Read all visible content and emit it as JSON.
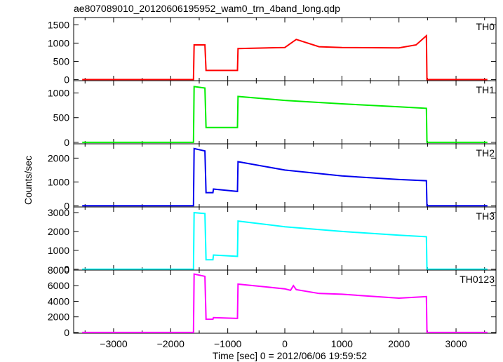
{
  "chart_data": {
    "type": "line",
    "title": "ae807089010_20120606195952_wam0_trn_4band_long.qdp",
    "xlabel": "Time [sec] 0 = 2012/06/06 19:59:52",
    "ylabel": "Counts/sec",
    "xlim": [
      -3700,
      3700
    ],
    "x_ticks": [
      -3000,
      -2000,
      -1000,
      0,
      1000,
      2000,
      3000
    ],
    "x_tick_labels": [
      "−3000",
      "−2000",
      "−1000",
      "0",
      "1000",
      "2000",
      "3000"
    ],
    "series": [
      {
        "name": "TH0",
        "color": "#ff0000",
        "ylim": [
          -30,
          1700
        ],
        "y_ticks": [
          0,
          500,
          1000,
          1500
        ],
        "y_tick_labels": [
          "0",
          "500",
          "1000",
          "1500"
        ],
        "x": [
          -3550,
          -1600,
          -1590,
          -1400,
          -1380,
          -830,
          -820,
          0,
          200,
          600,
          1000,
          2000,
          2300,
          2480,
          2490,
          3550
        ],
        "y": [
          0,
          0,
          950,
          950,
          250,
          250,
          850,
          880,
          1100,
          900,
          880,
          870,
          950,
          1200,
          0,
          0
        ]
      },
      {
        "name": "TH1",
        "color": "#00ee00",
        "ylim": [
          -30,
          1250
        ],
        "y_ticks": [
          0,
          500,
          1000
        ],
        "y_tick_labels": [
          "0",
          "500",
          "1000"
        ],
        "x": [
          -3550,
          -1600,
          -1590,
          -1400,
          -1380,
          -830,
          -820,
          0,
          1000,
          2000,
          2480,
          2490,
          3550
        ],
        "y": [
          0,
          0,
          1130,
          1100,
          300,
          300,
          930,
          850,
          780,
          720,
          690,
          0,
          0
        ]
      },
      {
        "name": "TH2",
        "color": "#0000ee",
        "ylim": [
          -50,
          2600
        ],
        "y_ticks": [
          0,
          1000,
          2000
        ],
        "y_tick_labels": [
          "0",
          "1000",
          "2000"
        ],
        "x": [
          -3550,
          -1600,
          -1590,
          -1400,
          -1380,
          -1260,
          -1250,
          -830,
          -820,
          0,
          1000,
          2000,
          2480,
          2490,
          3550
        ],
        "y": [
          0,
          0,
          2400,
          2300,
          550,
          550,
          700,
          600,
          1850,
          1500,
          1250,
          1100,
          1050,
          0,
          0
        ]
      },
      {
        "name": "TH3",
        "color": "#00ffff",
        "ylim": [
          -50,
          3300
        ],
        "y_ticks": [
          0,
          1000,
          2000,
          3000
        ],
        "y_tick_labels": [
          "0",
          "1000",
          "2000",
          "3000"
        ],
        "x": [
          -3550,
          -1600,
          -1590,
          -1400,
          -1380,
          -1260,
          -1250,
          -830,
          -820,
          0,
          1000,
          2000,
          2480,
          2490,
          3550
        ],
        "y": [
          0,
          0,
          3000,
          2950,
          500,
          500,
          750,
          680,
          2550,
          2250,
          2000,
          1800,
          1720,
          0,
          0
        ]
      },
      {
        "name": "TH0123",
        "color": "#ff00ff",
        "ylim": [
          -100,
          8000
        ],
        "y_ticks": [
          0,
          2000,
          4000,
          6000,
          8000
        ],
        "y_tick_labels": [
          "0",
          "2000",
          "4000",
          "6000",
          "8000"
        ],
        "x": [
          -3550,
          -1600,
          -1590,
          -1400,
          -1380,
          -1260,
          -1250,
          -830,
          -820,
          0,
          100,
          150,
          200,
          600,
          1000,
          2000,
          2480,
          2490,
          3550
        ],
        "y": [
          0,
          0,
          7500,
          7200,
          1700,
          1700,
          1900,
          1800,
          6200,
          5600,
          5400,
          6000,
          5500,
          5000,
          4900,
          4400,
          4600,
          0,
          0
        ]
      }
    ]
  }
}
